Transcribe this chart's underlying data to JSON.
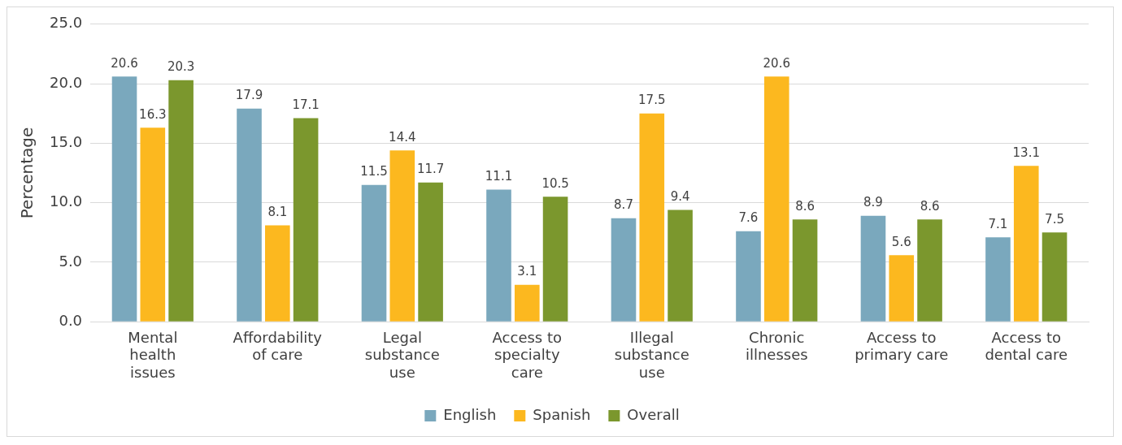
{
  "chart_data": {
    "type": "bar",
    "ylabel": "Percentage",
    "categories": [
      "Mental health issues",
      "Affordability of care",
      "Legal substance use",
      "Access to specialty care",
      "Illegal substance use",
      "Chronic illnesses",
      "Access to primary care",
      "Access to dental care"
    ],
    "series": [
      {
        "name": "English",
        "color": "#7aa8bd",
        "values": [
          20.6,
          17.9,
          11.5,
          11.1,
          8.7,
          7.6,
          8.9,
          7.1
        ]
      },
      {
        "name": "Spanish",
        "color": "#fcb81f",
        "values": [
          16.3,
          8.1,
          14.4,
          3.1,
          17.5,
          20.6,
          5.6,
          13.1
        ]
      },
      {
        "name": "Overall",
        "color": "#7b972d",
        "values": [
          20.3,
          17.1,
          11.7,
          10.5,
          9.4,
          8.6,
          8.6,
          7.5
        ]
      }
    ],
    "ylim": [
      0,
      25
    ],
    "yticks": [
      {
        "value": 0,
        "label": "0.0"
      },
      {
        "value": 5,
        "label": "5.0"
      },
      {
        "value": 10,
        "label": "10.0"
      },
      {
        "value": 15,
        "label": "15.0"
      },
      {
        "value": 20,
        "label": "20.0"
      },
      {
        "value": 25,
        "label": "25.0"
      }
    ],
    "grid": "y",
    "legend": "bottom",
    "data_labels": true
  }
}
